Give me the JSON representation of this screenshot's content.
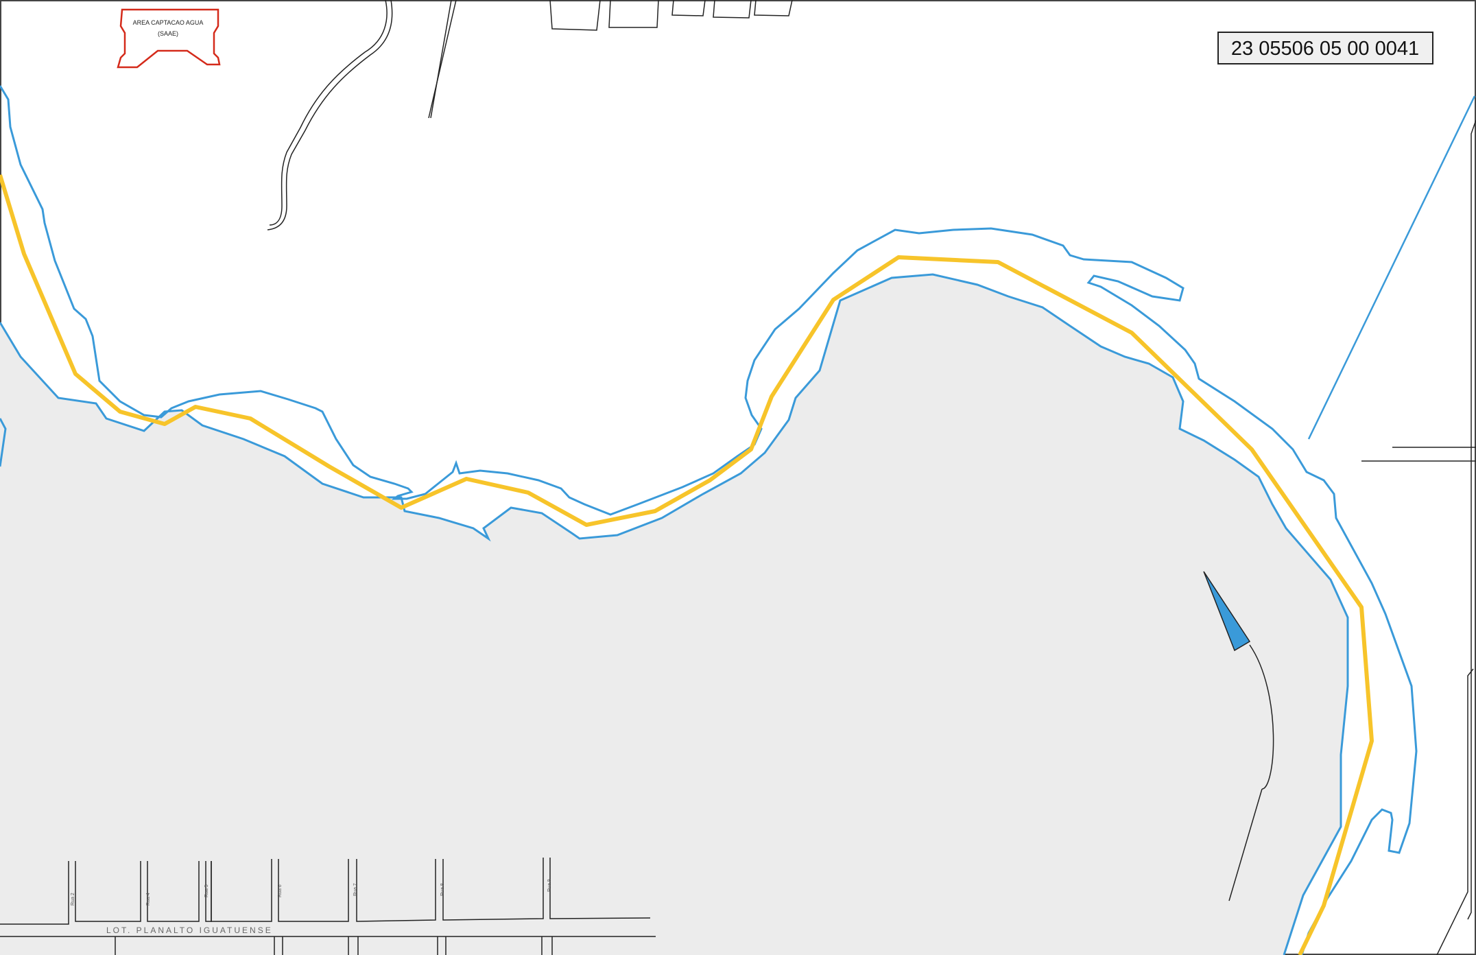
{
  "map": {
    "parcel_code": "23 05506 05 00 0041",
    "water_area_label": {
      "line1": "AREA CAPTACAO AGUA",
      "line2": "(SAAE)"
    },
    "subdivision_label": "LOT. PLANALTO IGUATUENSE",
    "street_labels": [
      "Rua 2",
      "Rua 4",
      "Rua 5",
      "Rua 6",
      "Rua 7",
      "Rua 8",
      "Rua 9"
    ],
    "colors": {
      "shoreline": "#3a9ad9",
      "boundary": "#f7c42a",
      "water_fill": "#ececec",
      "capture_area": "#d42a1a",
      "roads": "#222222",
      "arrow": "#3a9ad9"
    }
  }
}
